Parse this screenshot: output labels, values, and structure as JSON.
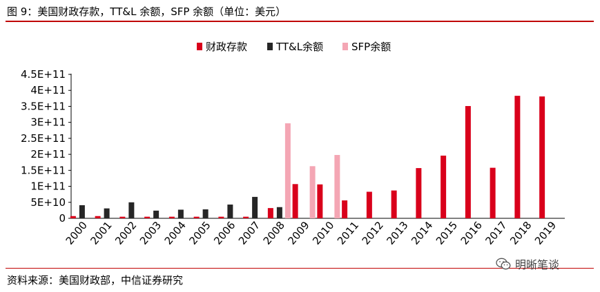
{
  "header": {
    "title": "图 9：美国财政存款，TT&L 余额，SFP 余额（单位：美元）"
  },
  "footer": {
    "source": "资料来源：美国财政部，中信证券研究",
    "watermark": "明晰笔谈"
  },
  "colors": {
    "rule": "#c00000",
    "tga": "#d9001b",
    "ttl": "#262626",
    "sfp": "#f4a6b4"
  },
  "watermark_icon": "wechat-icon",
  "chart_data": {
    "type": "bar",
    "categories": [
      "2000",
      "2001",
      "2002",
      "2003",
      "2004",
      "2005",
      "2006",
      "2007",
      "2008",
      "2009",
      "2010",
      "2011",
      "2012",
      "2013",
      "2014",
      "2015",
      "2016",
      "2017",
      "2018",
      "2019"
    ],
    "yticks": [
      "0",
      "5E+10",
      "1E+11",
      "1.5E+11",
      "2E+11",
      "2.5E+11",
      "3E+11",
      "3.5E+11",
      "4E+11",
      "4.5E+11"
    ],
    "ylim": [
      0,
      450000000000
    ],
    "legend_position": "top",
    "grid": false,
    "series": [
      {
        "name": "财政存款",
        "color": "#d9001b",
        "values": [
          7000000000,
          7000000000,
          5000000000,
          5000000000,
          5000000000,
          5000000000,
          5000000000,
          5000000000,
          32000000000,
          107000000000,
          106000000000,
          56000000000,
          83000000000,
          87000000000,
          157000000000,
          196000000000,
          351000000000,
          158000000000,
          383000000000,
          381000000000
        ]
      },
      {
        "name": "TT&L余额",
        "color": "#262626",
        "values": [
          41000000000,
          31000000000,
          50000000000,
          24000000000,
          27000000000,
          28000000000,
          43000000000,
          67000000000,
          35000000000,
          0,
          0,
          0,
          0,
          0,
          0,
          0,
          0,
          0,
          0,
          0
        ]
      },
      {
        "name": "SFP余额",
        "color": "#f4a6b4",
        "values": [
          0,
          0,
          0,
          0,
          0,
          0,
          0,
          0,
          297000000000,
          163000000000,
          198000000000,
          0,
          0,
          0,
          0,
          0,
          0,
          0,
          0,
          0
        ]
      }
    ]
  }
}
